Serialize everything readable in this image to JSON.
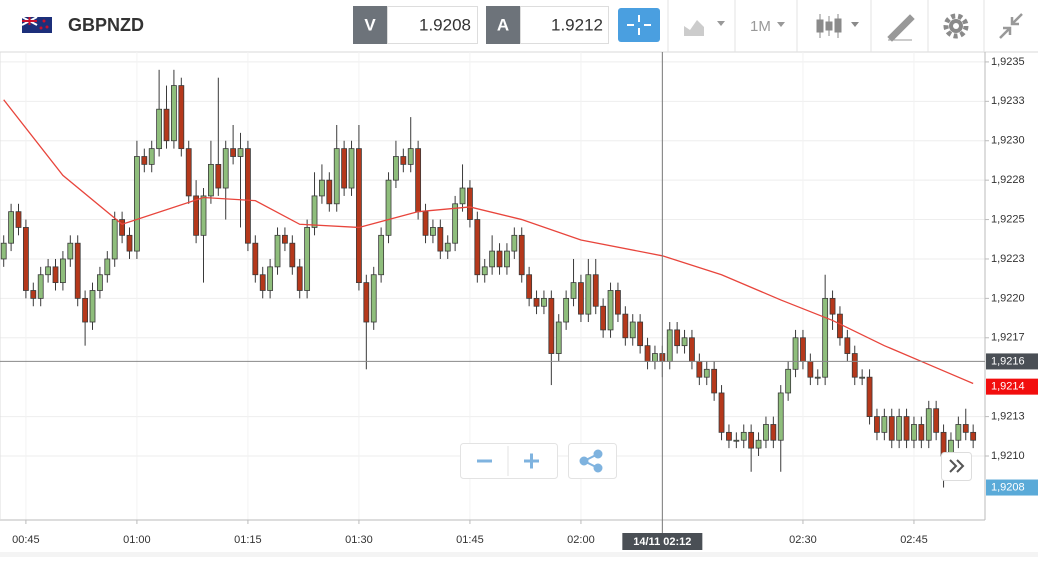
{
  "toolbar": {
    "symbol": "GBPNZD",
    "bid_label": "V",
    "bid": "1.9208",
    "ask_label": "A",
    "ask": "1.9212",
    "timeframe": "1M"
  },
  "chart_data": {
    "type": "candlestick",
    "x": [
      42,
      43,
      44,
      45,
      46,
      47,
      48,
      49,
      50,
      51,
      52,
      53,
      54,
      55,
      56,
      57,
      58,
      59,
      60,
      61,
      62,
      63,
      64,
      65,
      66,
      67,
      68,
      69,
      70,
      71,
      72,
      73,
      74,
      75,
      76,
      77,
      78,
      79,
      80,
      81,
      82,
      83,
      84,
      85,
      86,
      87,
      88,
      89,
      90,
      91,
      92,
      93,
      94,
      95,
      96,
      97,
      98,
      99,
      100,
      101,
      102,
      103,
      104,
      105,
      106,
      107,
      108,
      109,
      110,
      111,
      112,
      113,
      114,
      115,
      116,
      117,
      118,
      119,
      120,
      121,
      122,
      123,
      124,
      125,
      126,
      127,
      128,
      129,
      130,
      131,
      132,
      133,
      134,
      135,
      136,
      137,
      138,
      139,
      140,
      141,
      142,
      143,
      144,
      145,
      146,
      147,
      148,
      149,
      150,
      151,
      152,
      153,
      154,
      155,
      156,
      157,
      158,
      159,
      160,
      161,
      162,
      163,
      164,
      165,
      166,
      167,
      168,
      169,
      170,
      171,
      172,
      173
    ],
    "open": [
      1.92225,
      1.92235,
      1.92255,
      1.92245,
      1.92205,
      1.922,
      1.92215,
      1.9222,
      1.9221,
      1.92225,
      1.92235,
      1.922,
      1.92185,
      1.92205,
      1.92215,
      1.92225,
      1.9225,
      1.9224,
      1.9223,
      1.9229,
      1.92285,
      1.92295,
      1.9232,
      1.923,
      1.92335,
      1.92295,
      1.92265,
      1.9224,
      1.92265,
      1.92285,
      1.9227,
      1.92295,
      1.9229,
      1.92295,
      1.92235,
      1.92215,
      1.92205,
      1.9222,
      1.9224,
      1.92235,
      1.9222,
      1.92205,
      1.92245,
      1.92265,
      1.92275,
      1.9226,
      1.92295,
      1.9227,
      1.92295,
      1.9221,
      1.92185,
      1.92215,
      1.9224,
      1.92275,
      1.9229,
      1.92285,
      1.92295,
      1.92255,
      1.9224,
      1.92245,
      1.9223,
      1.92235,
      1.9226,
      1.9227,
      1.9225,
      1.92215,
      1.9222,
      1.9223,
      1.9222,
      1.9223,
      1.9224,
      1.92215,
      1.922,
      1.92195,
      1.922,
      1.92165,
      1.92185,
      1.922,
      1.9221,
      1.9219,
      1.92215,
      1.92195,
      1.9218,
      1.92205,
      1.9219,
      1.92175,
      1.92185,
      1.9217,
      1.9216,
      1.92165,
      1.9216,
      1.9218,
      1.9217,
      1.92175,
      1.9216,
      1.9215,
      1.92155,
      1.9214,
      1.92115,
      1.9211,
      1.9211,
      1.92115,
      1.92105,
      1.9211,
      1.9212,
      1.9211,
      1.9214,
      1.92155,
      1.92175,
      1.9216,
      1.9215,
      1.9215,
      1.922,
      1.9219,
      1.92175,
      1.92165,
      1.9215,
      1.9215,
      1.92125,
      1.92115,
      1.92125,
      1.9211,
      1.92125,
      1.9211,
      1.9212,
      1.9211,
      1.9213,
      1.92115,
      1.921,
      1.9211,
      1.9212,
      1.92115
    ],
    "high": [
      1.9224,
      1.9226,
      1.9226,
      1.9225,
      1.9221,
      1.9222,
      1.92225,
      1.92225,
      1.9223,
      1.9224,
      1.9224,
      1.92205,
      1.9221,
      1.9222,
      1.9223,
      1.92255,
      1.92255,
      1.92245,
      1.923,
      1.92295,
      1.923,
      1.92345,
      1.92335,
      1.92345,
      1.9234,
      1.923,
      1.92275,
      1.9227,
      1.923,
      1.9234,
      1.923,
      1.9231,
      1.92305,
      1.923,
      1.9224,
      1.9222,
      1.92225,
      1.92245,
      1.92245,
      1.9224,
      1.92225,
      1.9225,
      1.9228,
      1.92285,
      1.9228,
      1.9231,
      1.923,
      1.923,
      1.9231,
      1.92215,
      1.9222,
      1.92245,
      1.9228,
      1.923,
      1.92295,
      1.92315,
      1.923,
      1.9226,
      1.9225,
      1.9225,
      1.9224,
      1.92265,
      1.92285,
      1.92275,
      1.92255,
      1.92225,
      1.9224,
      1.92235,
      1.92235,
      1.92245,
      1.92245,
      1.9222,
      1.92205,
      1.92205,
      1.92205,
      1.9219,
      1.92205,
      1.92225,
      1.92215,
      1.92225,
      1.92225,
      1.922,
      1.9221,
      1.9221,
      1.92195,
      1.9219,
      1.9219,
      1.92175,
      1.9217,
      1.9217,
      1.92185,
      1.92185,
      1.9218,
      1.9218,
      1.92165,
      1.9216,
      1.9216,
      1.92145,
      1.9212,
      1.92115,
      1.9212,
      1.9212,
      1.92115,
      1.92125,
      1.92125,
      1.92145,
      1.9216,
      1.9218,
      1.9218,
      1.92165,
      1.92155,
      1.92215,
      1.92205,
      1.92195,
      1.9218,
      1.9217,
      1.92155,
      1.92155,
      1.9213,
      1.9213,
      1.9213,
      1.9213,
      1.9213,
      1.92125,
      1.92125,
      1.92135,
      1.92135,
      1.9212,
      1.92115,
      1.92125,
      1.9213,
      1.9212
    ],
    "low": [
      1.9222,
      1.9223,
      1.9224,
      1.922,
      1.92195,
      1.92195,
      1.9221,
      1.92205,
      1.92205,
      1.9222,
      1.92195,
      1.9217,
      1.9218,
      1.922,
      1.9221,
      1.9222,
      1.92235,
      1.92225,
      1.92225,
      1.9228,
      1.9228,
      1.9229,
      1.92295,
      1.92295,
      1.9229,
      1.9226,
      1.92235,
      1.9221,
      1.9226,
      1.92265,
      1.9225,
      1.92285,
      1.92245,
      1.9223,
      1.9221,
      1.922,
      1.922,
      1.92215,
      1.9223,
      1.92215,
      1.922,
      1.922,
      1.9224,
      1.9226,
      1.92255,
      1.92255,
      1.92265,
      1.92265,
      1.92205,
      1.92155,
      1.9218,
      1.9221,
      1.92235,
      1.9227,
      1.9228,
      1.9228,
      1.9225,
      1.92235,
      1.92235,
      1.92225,
      1.92225,
      1.9223,
      1.92255,
      1.92245,
      1.9221,
      1.9221,
      1.92215,
      1.92215,
      1.92215,
      1.92225,
      1.9221,
      1.92195,
      1.9219,
      1.9219,
      1.92145,
      1.9216,
      1.9218,
      1.92195,
      1.92185,
      1.92185,
      1.9219,
      1.92175,
      1.92175,
      1.92185,
      1.9217,
      1.9217,
      1.92165,
      1.92155,
      1.92155,
      1.9215,
      1.92155,
      1.92165,
      1.92165,
      1.92155,
      1.92145,
      1.92145,
      1.92135,
      1.9211,
      1.92105,
      1.92105,
      1.92105,
      1.9209,
      1.921,
      1.92105,
      1.92105,
      1.9209,
      1.92135,
      1.9215,
      1.92155,
      1.92145,
      1.92145,
      1.92145,
      1.9218,
      1.9217,
      1.9216,
      1.92145,
      1.92145,
      1.9212,
      1.9211,
      1.9211,
      1.92105,
      1.92105,
      1.92105,
      1.92105,
      1.92105,
      1.92105,
      1.9211,
      1.9208,
      1.92095,
      1.92105,
      1.9211,
      1.92105
    ],
    "close": [
      1.92235,
      1.92255,
      1.92245,
      1.92205,
      1.922,
      1.92215,
      1.9222,
      1.9221,
      1.92225,
      1.92235,
      1.922,
      1.92185,
      1.92205,
      1.92215,
      1.92225,
      1.9225,
      1.9224,
      1.9223,
      1.9229,
      1.92285,
      1.92295,
      1.9232,
      1.923,
      1.92335,
      1.92295,
      1.92265,
      1.9224,
      1.92265,
      1.92285,
      1.9227,
      1.92295,
      1.9229,
      1.92295,
      1.92235,
      1.92215,
      1.92205,
      1.9222,
      1.9224,
      1.92235,
      1.9222,
      1.92205,
      1.92245,
      1.92265,
      1.92275,
      1.9226,
      1.92295,
      1.9227,
      1.92295,
      1.9221,
      1.92185,
      1.92215,
      1.9224,
      1.92275,
      1.9229,
      1.92285,
      1.92295,
      1.92255,
      1.9224,
      1.92245,
      1.9223,
      1.92235,
      1.9226,
      1.9227,
      1.9225,
      1.92215,
      1.9222,
      1.9223,
      1.9222,
      1.9223,
      1.9224,
      1.92215,
      1.922,
      1.92195,
      1.922,
      1.92165,
      1.92185,
      1.922,
      1.9221,
      1.9219,
      1.92215,
      1.92195,
      1.9218,
      1.92205,
      1.9219,
      1.92175,
      1.92185,
      1.9217,
      1.9216,
      1.92165,
      1.9216,
      1.9218,
      1.9217,
      1.92175,
      1.9216,
      1.9215,
      1.92155,
      1.9214,
      1.92115,
      1.9211,
      1.9211,
      1.92115,
      1.92105,
      1.9211,
      1.9212,
      1.9211,
      1.9214,
      1.92155,
      1.92175,
      1.9216,
      1.9215,
      1.9215,
      1.922,
      1.9219,
      1.92175,
      1.92165,
      1.9215,
      1.9215,
      1.92125,
      1.92115,
      1.92125,
      1.9211,
      1.92125,
      1.9211,
      1.9212,
      1.9211,
      1.9213,
      1.92115,
      1.921,
      1.9211,
      1.9212,
      1.92115,
      1.9211
    ],
    "up_color": "#8fbe7c",
    "down_color": "#b5381b",
    "outline_color": "#3a3a3a",
    "ma": {
      "color": "#e8453c",
      "x": [
        42,
        50,
        58,
        69,
        76,
        82,
        90,
        98,
        105,
        112,
        120,
        131,
        139,
        147,
        154,
        161,
        167,
        173
      ],
      "values": [
        1.92326,
        1.92278,
        1.92247,
        1.92264,
        1.92262,
        1.92247,
        1.92245,
        1.92255,
        1.92258,
        1.9225,
        1.92237,
        1.92227,
        1.92215,
        1.92199,
        1.92186,
        1.9217,
        1.92158,
        1.92146
      ]
    },
    "xlim": [
      41.5,
      174.6
    ],
    "ylim": [
      1.920594,
      1.923563
    ],
    "xticks": [
      {
        "value": 45,
        "label": "00:45"
      },
      {
        "value": 60,
        "label": "01:00"
      },
      {
        "value": 75,
        "label": "01:15"
      },
      {
        "value": 90,
        "label": "01:30"
      },
      {
        "value": 105,
        "label": "01:45"
      },
      {
        "value": 120,
        "label": "02:00"
      },
      {
        "value": 150,
        "label": "02:30"
      },
      {
        "value": 165,
        "label": "02:45"
      }
    ],
    "yticks": [
      {
        "value": 1.9235,
        "label": "1,9235"
      },
      {
        "value": 1.92325,
        "label": "1,9233"
      },
      {
        "value": 1.923,
        "label": "1,9230"
      },
      {
        "value": 1.92275,
        "label": "1,9228"
      },
      {
        "value": 1.9225,
        "label": "1,9225"
      },
      {
        "value": 1.92225,
        "label": "1,9223"
      },
      {
        "value": 1.922,
        "label": "1,9220"
      },
      {
        "value": 1.92175,
        "label": "1,9217"
      },
      {
        "value": 1.92125,
        "label": "1,9213"
      },
      {
        "value": 1.921,
        "label": "1,9210"
      }
    ],
    "grid": true,
    "crosshair": {
      "x": {
        "value": 131,
        "label": "14/11 02:12"
      },
      "y": {
        "value": 1.9216,
        "label": "1,9216"
      }
    },
    "last_price": {
      "value": 1.92144,
      "label": "1,9214",
      "color": "#f20d0d"
    },
    "bid_price": {
      "value": 1.9208,
      "label": "1,9208",
      "color": "#5aaad8"
    }
  }
}
